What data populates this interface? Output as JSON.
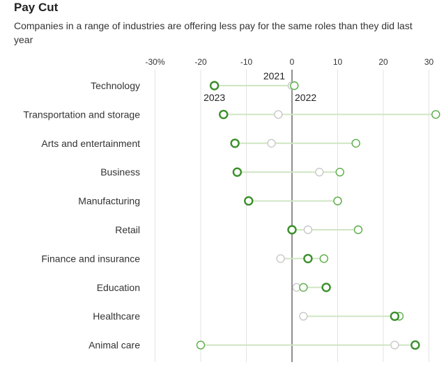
{
  "chart_data": {
    "type": "dumbbell",
    "title": "Pay Cut",
    "subtitle": "Companies in a range of industries are offering less pay for the same roles than they did last year",
    "x_ticks": [
      "-30%",
      "-20",
      "-10",
      "0",
      "10",
      "20",
      "30"
    ],
    "x_tick_values": [
      -30,
      -20,
      -10,
      0,
      10,
      20,
      30
    ],
    "xlim": [
      -32,
      32
    ],
    "series": [
      {
        "name": "2021",
        "color": "#c8c8c8"
      },
      {
        "name": "2022",
        "color": "#5aab46"
      },
      {
        "name": "2023",
        "color": "#3a8f2a"
      }
    ],
    "categories": [
      "Technology",
      "Transportation and storage",
      "Arts and entertainment",
      "Business",
      "Manufacturing",
      "Retail",
      "Finance and insurance",
      "Education",
      "Healthcare",
      "Animal care"
    ],
    "rows": [
      {
        "category": "Technology",
        "y2021": 0,
        "y2022": 0.5,
        "y2023": -17
      },
      {
        "category": "Transportation and storage",
        "y2021": -3,
        "y2022": 31.5,
        "y2023": -15
      },
      {
        "category": "Arts and entertainment",
        "y2021": -4.5,
        "y2022": 14,
        "y2023": -12.5
      },
      {
        "category": "Business",
        "y2021": 6,
        "y2022": 10.5,
        "y2023": -12
      },
      {
        "category": "Manufacturing",
        "y2021": 10,
        "y2022": 10,
        "y2023": -9.5
      },
      {
        "category": "Retail",
        "y2021": 3.5,
        "y2022": 14.5,
        "y2023": 0
      },
      {
        "category": "Finance and insurance",
        "y2021": -2.5,
        "y2022": 7,
        "y2023": 3.5
      },
      {
        "category": "Education",
        "y2021": 1,
        "y2022": 2.5,
        "y2023": 7.5
      },
      {
        "category": "Healthcare",
        "y2021": 2.5,
        "y2022": 23.5,
        "y2023": 22.5
      },
      {
        "category": "Animal care",
        "y2021": 22.5,
        "y2022": -20,
        "y2023": 27
      }
    ],
    "annotations": [
      {
        "text": "2021",
        "category": "Technology",
        "series": "2021"
      },
      {
        "text": "2022",
        "category": "Technology",
        "series": "2022"
      },
      {
        "text": "2023",
        "category": "Technology",
        "series": "2023"
      }
    ]
  }
}
